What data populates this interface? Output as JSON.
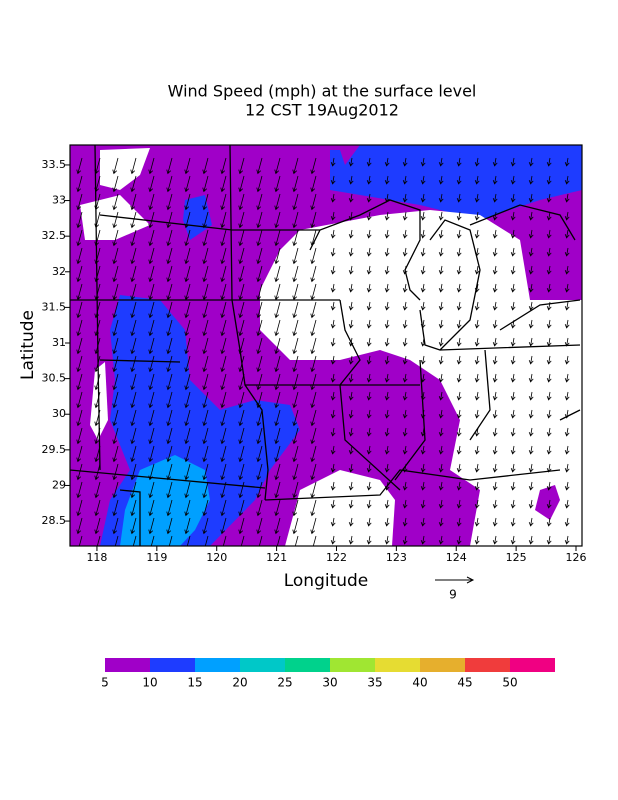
{
  "chart_data": {
    "type": "map",
    "title": [
      "Wind Speed (mph) at the surface level",
      "12 CST 19Aug2012"
    ],
    "xlabel": "Longitude",
    "ylabel": "Latitude",
    "xlim": [
      117.55,
      126.1
    ],
    "ylim": [
      28.15,
      33.78
    ],
    "xticks": [
      118,
      119,
      120,
      121,
      122,
      123,
      124,
      125,
      126
    ],
    "yticks": [
      28.5,
      29,
      29.5,
      30,
      30.5,
      31,
      31.5,
      32,
      32.5,
      33,
      33.5
    ],
    "reference_vector": {
      "label": "9"
    },
    "colorbar": {
      "levels": [
        5,
        10,
        15,
        20,
        25,
        30,
        35,
        40,
        45,
        50
      ],
      "colors": [
        "#a000c8",
        "#1e3cff",
        "#00a0ff",
        "#00c8c8",
        "#00d28c",
        "#a0e632",
        "#e6dc32",
        "#e6af2d",
        "#f03c3c",
        "#f00082"
      ]
    }
  }
}
